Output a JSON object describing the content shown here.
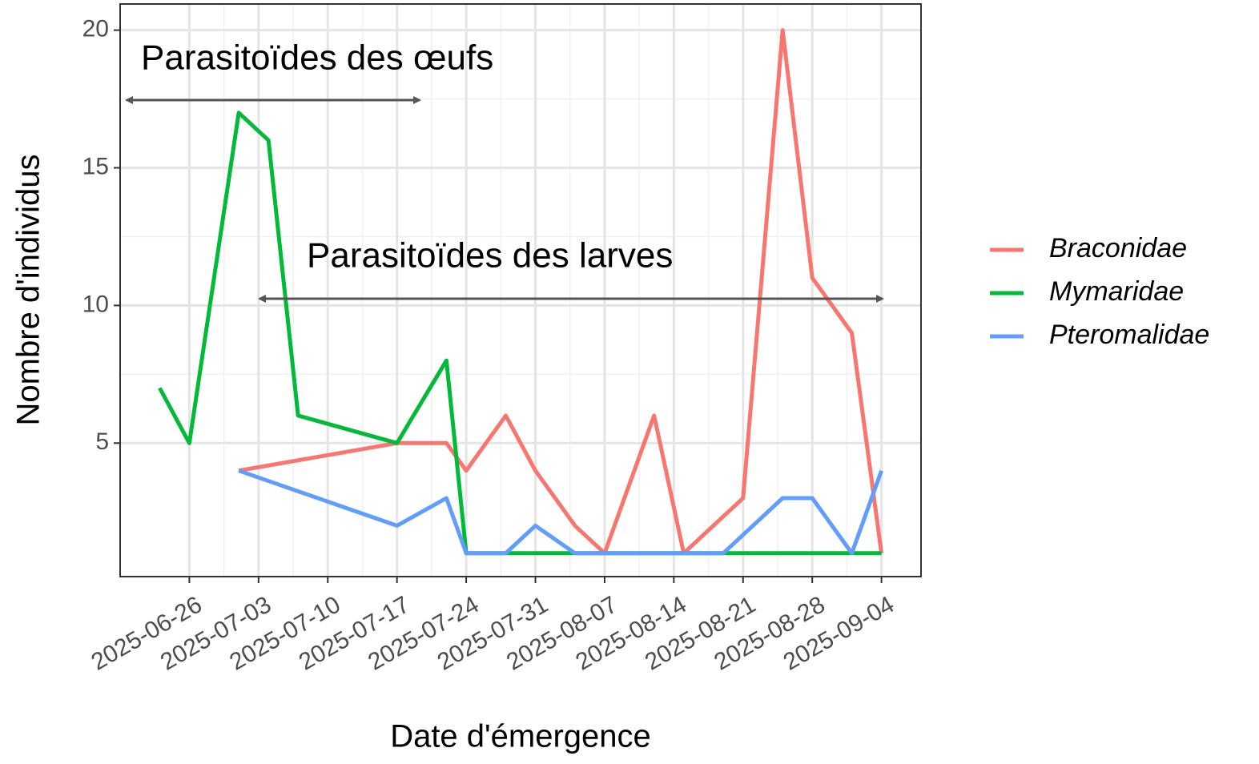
{
  "chart_data": {
    "type": "line",
    "x_label": "Date d'émergence",
    "y_label": "Nombre d'individus",
    "annotations": [
      "Parasitoïdes des œufs",
      "Parasitoïdes des larves"
    ],
    "xlim": [
      "2025-06-19",
      "2025-09-08"
    ],
    "xticks": [
      "2025-06-26",
      "2025-07-03",
      "2025-07-10",
      "2025-07-17",
      "2025-07-24",
      "2025-07-31",
      "2025-08-07",
      "2025-08-14",
      "2025-08-21",
      "2025-08-28",
      "2025-09-04"
    ],
    "ylim": [
      0.15,
      20.95
    ],
    "yticks": [
      5,
      10,
      15,
      20
    ],
    "grid": true,
    "legend": "right",
    "series": [
      {
        "name": "Braconidae",
        "color": "#F8766D",
        "x": [
          "2025-07-01",
          "2025-07-17",
          "2025-07-22",
          "2025-07-24",
          "2025-07-28",
          "2025-07-31",
          "2025-08-04",
          "2025-08-07",
          "2025-08-12",
          "2025-08-15",
          "2025-08-21",
          "2025-08-25",
          "2025-08-28",
          "2025-09-01",
          "2025-09-04"
        ],
        "values": [
          4,
          5,
          5,
          4,
          6,
          4,
          2,
          1,
          6,
          1,
          3,
          20,
          11,
          9,
          1
        ]
      },
      {
        "name": "Mymaridae",
        "color": "#00BA38",
        "x": [
          "2025-06-23",
          "2025-06-26",
          "2025-07-01",
          "2025-07-04",
          "2025-07-07",
          "2025-07-17",
          "2025-07-22",
          "2025-07-24",
          "2025-07-28",
          "2025-08-07",
          "2025-08-21",
          "2025-09-04"
        ],
        "values": [
          7,
          5,
          17,
          16,
          6,
          5,
          8,
          1,
          1,
          1,
          1,
          1
        ]
      },
      {
        "name": "Pteromalidae",
        "color": "#619CFF",
        "x": [
          "2025-07-01",
          "2025-07-17",
          "2025-07-22",
          "2025-07-24",
          "2025-07-28",
          "2025-07-31",
          "2025-08-04",
          "2025-08-07",
          "2025-08-12",
          "2025-08-15",
          "2025-08-19",
          "2025-08-25",
          "2025-08-28",
          "2025-09-01",
          "2025-09-04"
        ],
        "values": [
          4,
          2,
          3,
          1,
          1,
          2,
          1,
          1,
          1,
          1,
          1,
          3,
          3,
          1,
          4
        ]
      }
    ]
  }
}
